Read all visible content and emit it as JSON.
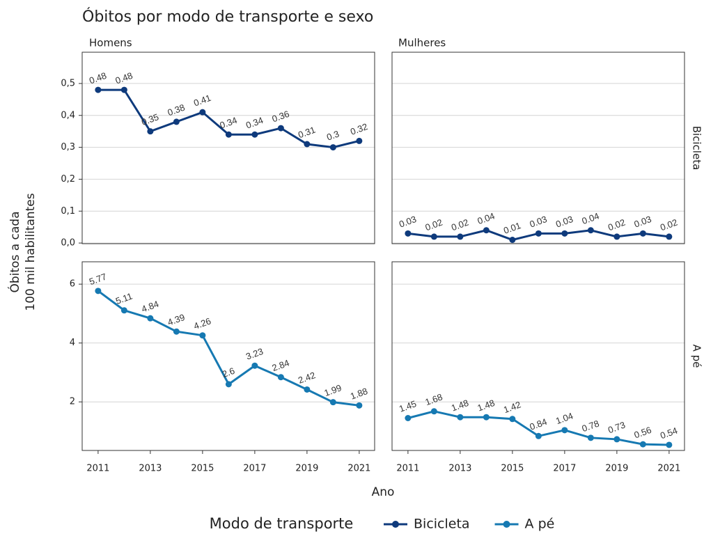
{
  "chart_data": {
    "type": "line",
    "title": "Óbitos por modo de transporte e sexo",
    "xlabel": "Ano",
    "ylabel": [
      "Óbitos a cada",
      "100 mil habilitantes"
    ],
    "legend_title": "Modo de transporte",
    "legend": "bottom",
    "grid": true,
    "facets": [
      "Homens",
      "Mulheres"
    ],
    "x": [
      2011,
      2012,
      2013,
      2014,
      2015,
      2016,
      2017,
      2018,
      2019,
      2020,
      2021
    ],
    "xlim": [
      2010.39,
      2021.59
    ],
    "xticks": [
      2011,
      2013,
      2015,
      2017,
      2019,
      2021
    ],
    "series": [
      {
        "name": "Bicicleta",
        "color": "#0e3a7c",
        "ylim": [
          -0.002,
          0.598
        ],
        "yticks": [
          {
            "value": 0,
            "label": "0,0"
          },
          {
            "value": 0.1,
            "label": "0,1"
          },
          {
            "value": 0.2,
            "label": "0,2"
          },
          {
            "value": 0.3,
            "label": "0,3"
          },
          {
            "value": 0.4,
            "label": "0,4"
          },
          {
            "value": 0.5,
            "label": "0,5"
          }
        ],
        "panels": [
          {
            "values": [
              0.48,
              0.48,
              0.35,
              0.38,
              0.41,
              0.34,
              0.34,
              0.36,
              0.31,
              0.3,
              0.32
            ]
          },
          {
            "values": [
              0.03,
              0.02,
              0.02,
              0.04,
              0.01,
              0.03,
              0.03,
              0.04,
              0.02,
              0.03,
              0.02
            ]
          }
        ]
      },
      {
        "name": "A pé",
        "color": "#1679b2",
        "ylim": [
          0.35,
          6.76
        ],
        "yticks": [
          2,
          4,
          6
        ],
        "panels": [
          {
            "values": [
              5.77,
              5.11,
              4.84,
              4.39,
              4.26,
              2.6,
              3.23,
              2.84,
              2.42,
              1.99,
              1.88
            ]
          },
          {
            "values": [
              1.45,
              1.68,
              1.48,
              1.48,
              1.42,
              0.84,
              1.04,
              0.78,
              0.73,
              0.56,
              0.54
            ]
          }
        ]
      }
    ]
  }
}
